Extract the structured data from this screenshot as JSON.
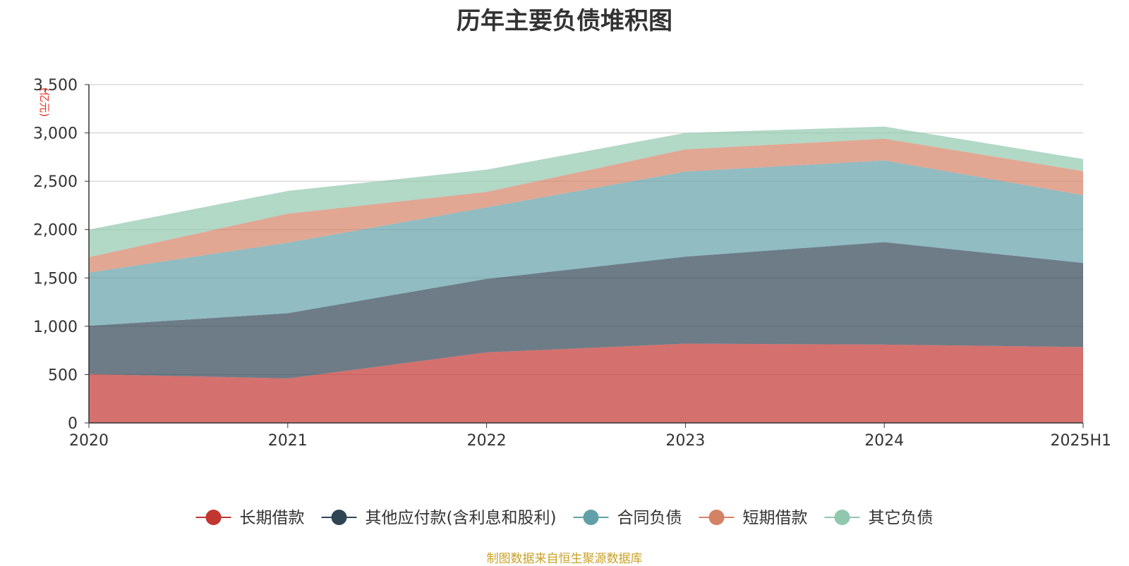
{
  "title": "历年主要负债堆积图",
  "source": "制图数据来自恒生聚源数据库",
  "chart_data": {
    "type": "area",
    "stacked": true,
    "title": "历年主要负债堆积图",
    "ylabel": "(亿元)",
    "ylim": [
      0,
      3500
    ],
    "yticks": [
      "0",
      "500",
      "1,000",
      "1,500",
      "2,000",
      "2,500",
      "3,000",
      "3,500"
    ],
    "categories": [
      "2020",
      "2021",
      "2022",
      "2023",
      "2024",
      "2025H1"
    ],
    "grid": true,
    "legend_position": "bottom",
    "series": [
      {
        "name": "长期借款",
        "color": "#c23531",
        "values": [
          505,
          460,
          730,
          820,
          810,
          785
        ]
      },
      {
        "name": "其他应付款(含利息和股利)",
        "color": "#2f4554",
        "values": [
          500,
          675,
          760,
          900,
          1060,
          870
        ]
      },
      {
        "name": "合同负债",
        "color": "#61a0a8",
        "values": [
          550,
          730,
          740,
          880,
          845,
          700
        ]
      },
      {
        "name": "短期借款",
        "color": "#d48265",
        "values": [
          160,
          300,
          160,
          230,
          225,
          250
        ]
      },
      {
        "name": "其它负债",
        "color": "#91c7ae",
        "values": [
          285,
          235,
          230,
          170,
          125,
          125
        ]
      }
    ]
  }
}
